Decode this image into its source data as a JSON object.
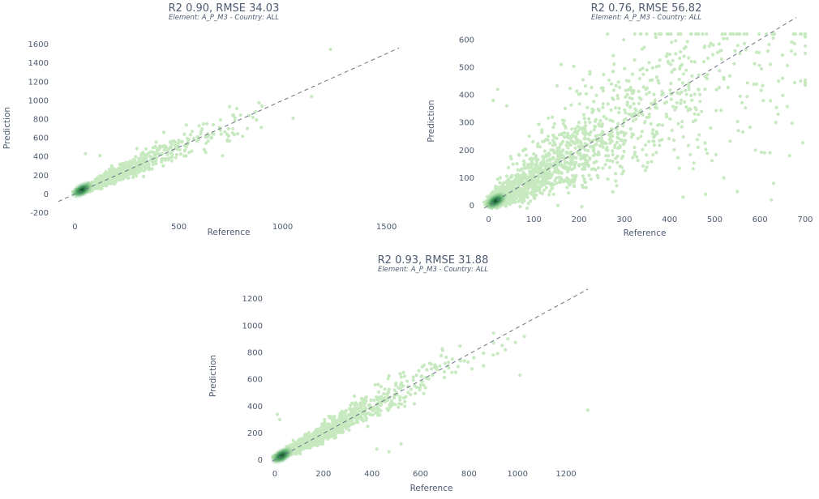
{
  "chart_data": [
    {
      "type": "scatter",
      "title": "R2 0.90, RMSE 34.03",
      "subtitle": "Element: A_P_M3 - Country: ALL",
      "xlabel": "Reference",
      "ylabel": "Prediction",
      "xlim": [
        -80,
        1560
      ],
      "ylim": [
        -230,
        1640
      ],
      "xticks": [
        0,
        500,
        1000,
        1500
      ],
      "yticks": [
        -200,
        0,
        200,
        400,
        600,
        800,
        1000,
        1200,
        1400,
        1600
      ],
      "reference_line": {
        "style": "dashed",
        "from": [
          -80,
          -80
        ],
        "to": [
          1560,
          1560
        ]
      },
      "point_color": "#c7e9c0",
      "density_color": "#00441b",
      "density": {
        "center": [
          10,
          10
        ],
        "spread": 200,
        "max": 850,
        "noise": 0.12
      },
      "outliers": [
        [
          1230,
          1545
        ],
        [
          1050,
          810
        ],
        [
          900,
          940
        ],
        [
          830,
          700
        ],
        [
          870,
          880
        ],
        [
          760,
          840
        ],
        [
          700,
          790
        ],
        [
          1140,
          1040
        ],
        [
          50,
          430
        ],
        [
          120,
          410
        ]
      ]
    },
    {
      "type": "scatter",
      "title": "R2 0.76, RMSE 56.82",
      "subtitle": "Element: A_P_M3 - Country: ALL",
      "xlabel": "Reference",
      "ylabel": "Prediction",
      "xlim": [
        -10,
        700
      ],
      "ylim": [
        -10,
        620
      ],
      "xticks": [
        0,
        100,
        200,
        300,
        400,
        500,
        600,
        700
      ],
      "yticks": [
        0,
        100,
        200,
        300,
        400,
        500,
        600
      ],
      "reference_line": {
        "style": "dashed",
        "from": [
          -10,
          -10
        ],
        "to": [
          680,
          680
        ]
      },
      "point_color": "#c7e9c0",
      "density_color": "#00441b",
      "density": {
        "center": [
          5,
          5
        ],
        "spread": 200,
        "max": 650,
        "noise": 0.3
      },
      "outliers": [
        [
          160,
          510
        ],
        [
          650,
          460
        ],
        [
          690,
          450
        ],
        [
          640,
          330
        ],
        [
          635,
          300
        ],
        [
          590,
          200
        ],
        [
          610,
          190
        ],
        [
          630,
          80
        ],
        [
          625,
          20
        ],
        [
          550,
          50
        ],
        [
          480,
          40
        ],
        [
          520,
          100
        ],
        [
          430,
          30
        ],
        [
          10,
          380
        ],
        [
          40,
          360
        ],
        [
          20,
          420
        ]
      ]
    },
    {
      "type": "scatter",
      "title": "R2 0.93, RMSE 31.88",
      "subtitle": "Element: A_P_M3 - Country: ALL",
      "xlabel": "Reference",
      "ylabel": "Prediction",
      "xlim": [
        -10,
        1300
      ],
      "ylim": [
        -20,
        1270
      ],
      "xticks": [
        0,
        200,
        400,
        600,
        800,
        1000,
        1200
      ],
      "yticks": [
        0,
        200,
        400,
        600,
        800,
        1000,
        1200
      ],
      "reference_line": {
        "style": "dashed",
        "from": [
          -10,
          -10
        ],
        "to": [
          1290,
          1270
        ]
      },
      "point_color": "#c7e9c0",
      "density_color": "#00441b",
      "density": {
        "center": [
          8,
          8
        ],
        "spread": 200,
        "max": 950,
        "noise": 0.1
      },
      "outliers": [
        [
          1290,
          370
        ],
        [
          1010,
          630
        ],
        [
          960,
          900
        ],
        [
          900,
          780
        ],
        [
          860,
          700
        ],
        [
          820,
          760
        ],
        [
          950,
          820
        ],
        [
          420,
          80
        ],
        [
          470,
          60
        ],
        [
          520,
          120
        ],
        [
          10,
          340
        ],
        [
          20,
          300
        ]
      ]
    }
  ]
}
